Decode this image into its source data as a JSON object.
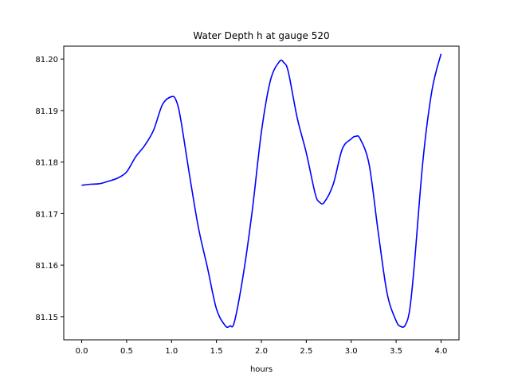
{
  "chart_data": {
    "type": "line",
    "title": "Water Depth h at gauge 520",
    "xlabel": "hours",
    "ylabel": "",
    "xlim": [
      -0.2,
      4.2
    ],
    "ylim": [
      81.1455,
      81.2025
    ],
    "xticks": [
      0.0,
      0.5,
      1.0,
      1.5,
      2.0,
      2.5,
      3.0,
      3.5,
      4.0
    ],
    "xtick_labels": [
      "0.0",
      "0.5",
      "1.0",
      "1.5",
      "2.0",
      "2.5",
      "3.0",
      "3.5",
      "4.0"
    ],
    "yticks": [
      81.15,
      81.16,
      81.17,
      81.18,
      81.19,
      81.2
    ],
    "ytick_labels": [
      "81.15",
      "81.16",
      "81.17",
      "81.18",
      "81.19",
      "81.20"
    ],
    "grid": false,
    "legend": "none",
    "series": [
      {
        "color": "#0000ff",
        "x": [
          0.0,
          0.1,
          0.2,
          0.3,
          0.4,
          0.5,
          0.6,
          0.7,
          0.8,
          0.9,
          1.0,
          1.05,
          1.1,
          1.2,
          1.3,
          1.4,
          1.5,
          1.6,
          1.65,
          1.7,
          1.8,
          1.9,
          2.0,
          2.1,
          2.2,
          2.25,
          2.3,
          2.4,
          2.5,
          2.6,
          2.65,
          2.7,
          2.8,
          2.9,
          3.0,
          3.05,
          3.1,
          3.2,
          3.3,
          3.4,
          3.5,
          3.55,
          3.6,
          3.65,
          3.7,
          3.8,
          3.9,
          4.0
        ],
        "y": [
          81.1755,
          81.1757,
          81.1758,
          81.1763,
          81.1769,
          81.1781,
          81.181,
          81.1832,
          81.1862,
          81.1912,
          81.1927,
          81.192,
          81.1885,
          81.1775,
          81.1672,
          81.1595,
          81.1515,
          81.1482,
          81.1482,
          81.149,
          81.1583,
          81.1708,
          81.1858,
          81.1958,
          81.1995,
          81.1993,
          81.1975,
          81.1885,
          81.1818,
          81.1738,
          81.1722,
          81.1722,
          81.1757,
          81.1825,
          81.1845,
          81.185,
          81.1845,
          81.1795,
          81.1665,
          81.1545,
          81.1492,
          81.1481,
          81.1483,
          81.1512,
          81.1595,
          81.1805,
          81.194,
          81.201
        ]
      }
    ]
  }
}
